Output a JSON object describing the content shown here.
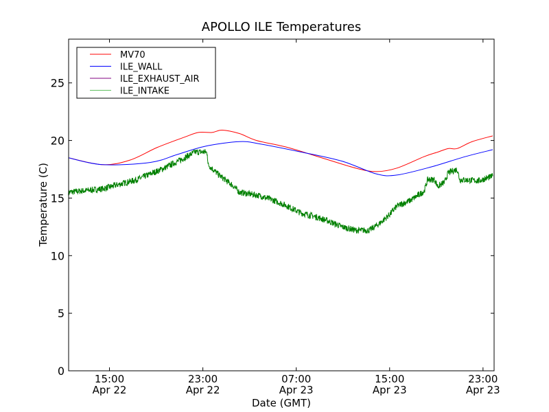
{
  "chart_data": {
    "type": "line",
    "title": "APOLLO ILE Temperatures",
    "xlabel": "Date (GMT)",
    "ylabel": "Temperature (C)",
    "x_units": "hours since 00:00 Apr 22 (GMT)",
    "xlim": [
      11.5,
      47.95
    ],
    "ylim": [
      0,
      28.8
    ],
    "grid": false,
    "legend_position": "top-left",
    "x_ticks": [
      {
        "value": 15,
        "time": "15:00",
        "date": "Apr 22"
      },
      {
        "value": 23,
        "time": "23:00",
        "date": "Apr 22"
      },
      {
        "value": 31,
        "time": "07:00",
        "date": "Apr 23"
      },
      {
        "value": 39,
        "time": "15:00",
        "date": "Apr 23"
      },
      {
        "value": 47,
        "time": "23:00",
        "date": "Apr 23"
      }
    ],
    "y_ticks": [
      {
        "value": 0,
        "label": "0"
      },
      {
        "value": 5,
        "label": "5"
      },
      {
        "value": 10,
        "label": "10"
      },
      {
        "value": 15,
        "label": "15"
      },
      {
        "value": 20,
        "label": "20"
      },
      {
        "value": 25,
        "label": "25"
      }
    ],
    "series": [
      {
        "name": "MV70",
        "color": "#ff0000",
        "legend_color": "#ff0000",
        "noisy": false,
        "x": [
          11.48,
          14.41,
          16.76,
          19.1,
          21.45,
          22.62,
          23.79,
          24.67,
          26.14,
          27.6,
          30.24,
          33.17,
          36.1,
          37.86,
          39.62,
          41.96,
          43.14,
          44.02,
          44.78,
          46.07,
          47.83
        ],
        "y": [
          18.5,
          17.9,
          18.3,
          19.4,
          20.3,
          20.7,
          20.7,
          20.9,
          20.6,
          20.0,
          19.4,
          18.5,
          17.6,
          17.3,
          17.6,
          18.6,
          19.0,
          19.3,
          19.3,
          19.9,
          20.4
        ]
      },
      {
        "name": "ILE_WALL",
        "color": "#0000ff",
        "legend_color": "#0000ff",
        "noisy": false,
        "x": [
          11.48,
          14.41,
          18.52,
          20.86,
          23.21,
          26.14,
          27.9,
          31.41,
          34.93,
          37.86,
          39.62,
          42.55,
          45.48,
          47.83
        ],
        "y": [
          18.5,
          17.9,
          18.1,
          18.8,
          19.5,
          19.9,
          19.7,
          19.0,
          18.2,
          17.1,
          17.0,
          17.7,
          18.6,
          19.2
        ]
      },
      {
        "name": "ILE_EXHAUST_AIR",
        "color": "#800080",
        "legend_color": "#800080",
        "noisy": false,
        "x": [],
        "y": []
      },
      {
        "name": "ILE_INTAKE",
        "color": "#008000",
        "legend_color": "#5fbf5f",
        "noisy": true,
        "x": [
          11.48,
          14.41,
          17.34,
          19.69,
          21.45,
          22.33,
          23.21,
          23.38,
          23.44,
          24.38,
          25.55,
          26.14,
          27.9,
          29.07,
          30.24,
          31.41,
          32.58,
          33.76,
          34.93,
          36.1,
          37.27,
          38.15,
          39.03,
          39.62,
          40.79,
          41.96,
          42.26,
          42.84,
          43.14,
          43.72,
          44.02,
          44.78,
          45.01,
          46.66,
          47.83
        ],
        "y": [
          15.5,
          15.8,
          16.6,
          17.6,
          18.5,
          19.0,
          19.0,
          18.9,
          17.9,
          17.0,
          16.1,
          15.5,
          15.2,
          14.8,
          14.3,
          13.7,
          13.4,
          13.0,
          12.5,
          12.2,
          12.2,
          12.8,
          13.6,
          14.3,
          14.8,
          15.6,
          16.6,
          16.6,
          16.0,
          16.4,
          17.2,
          17.5,
          16.6,
          16.5,
          16.9
        ]
      }
    ]
  }
}
